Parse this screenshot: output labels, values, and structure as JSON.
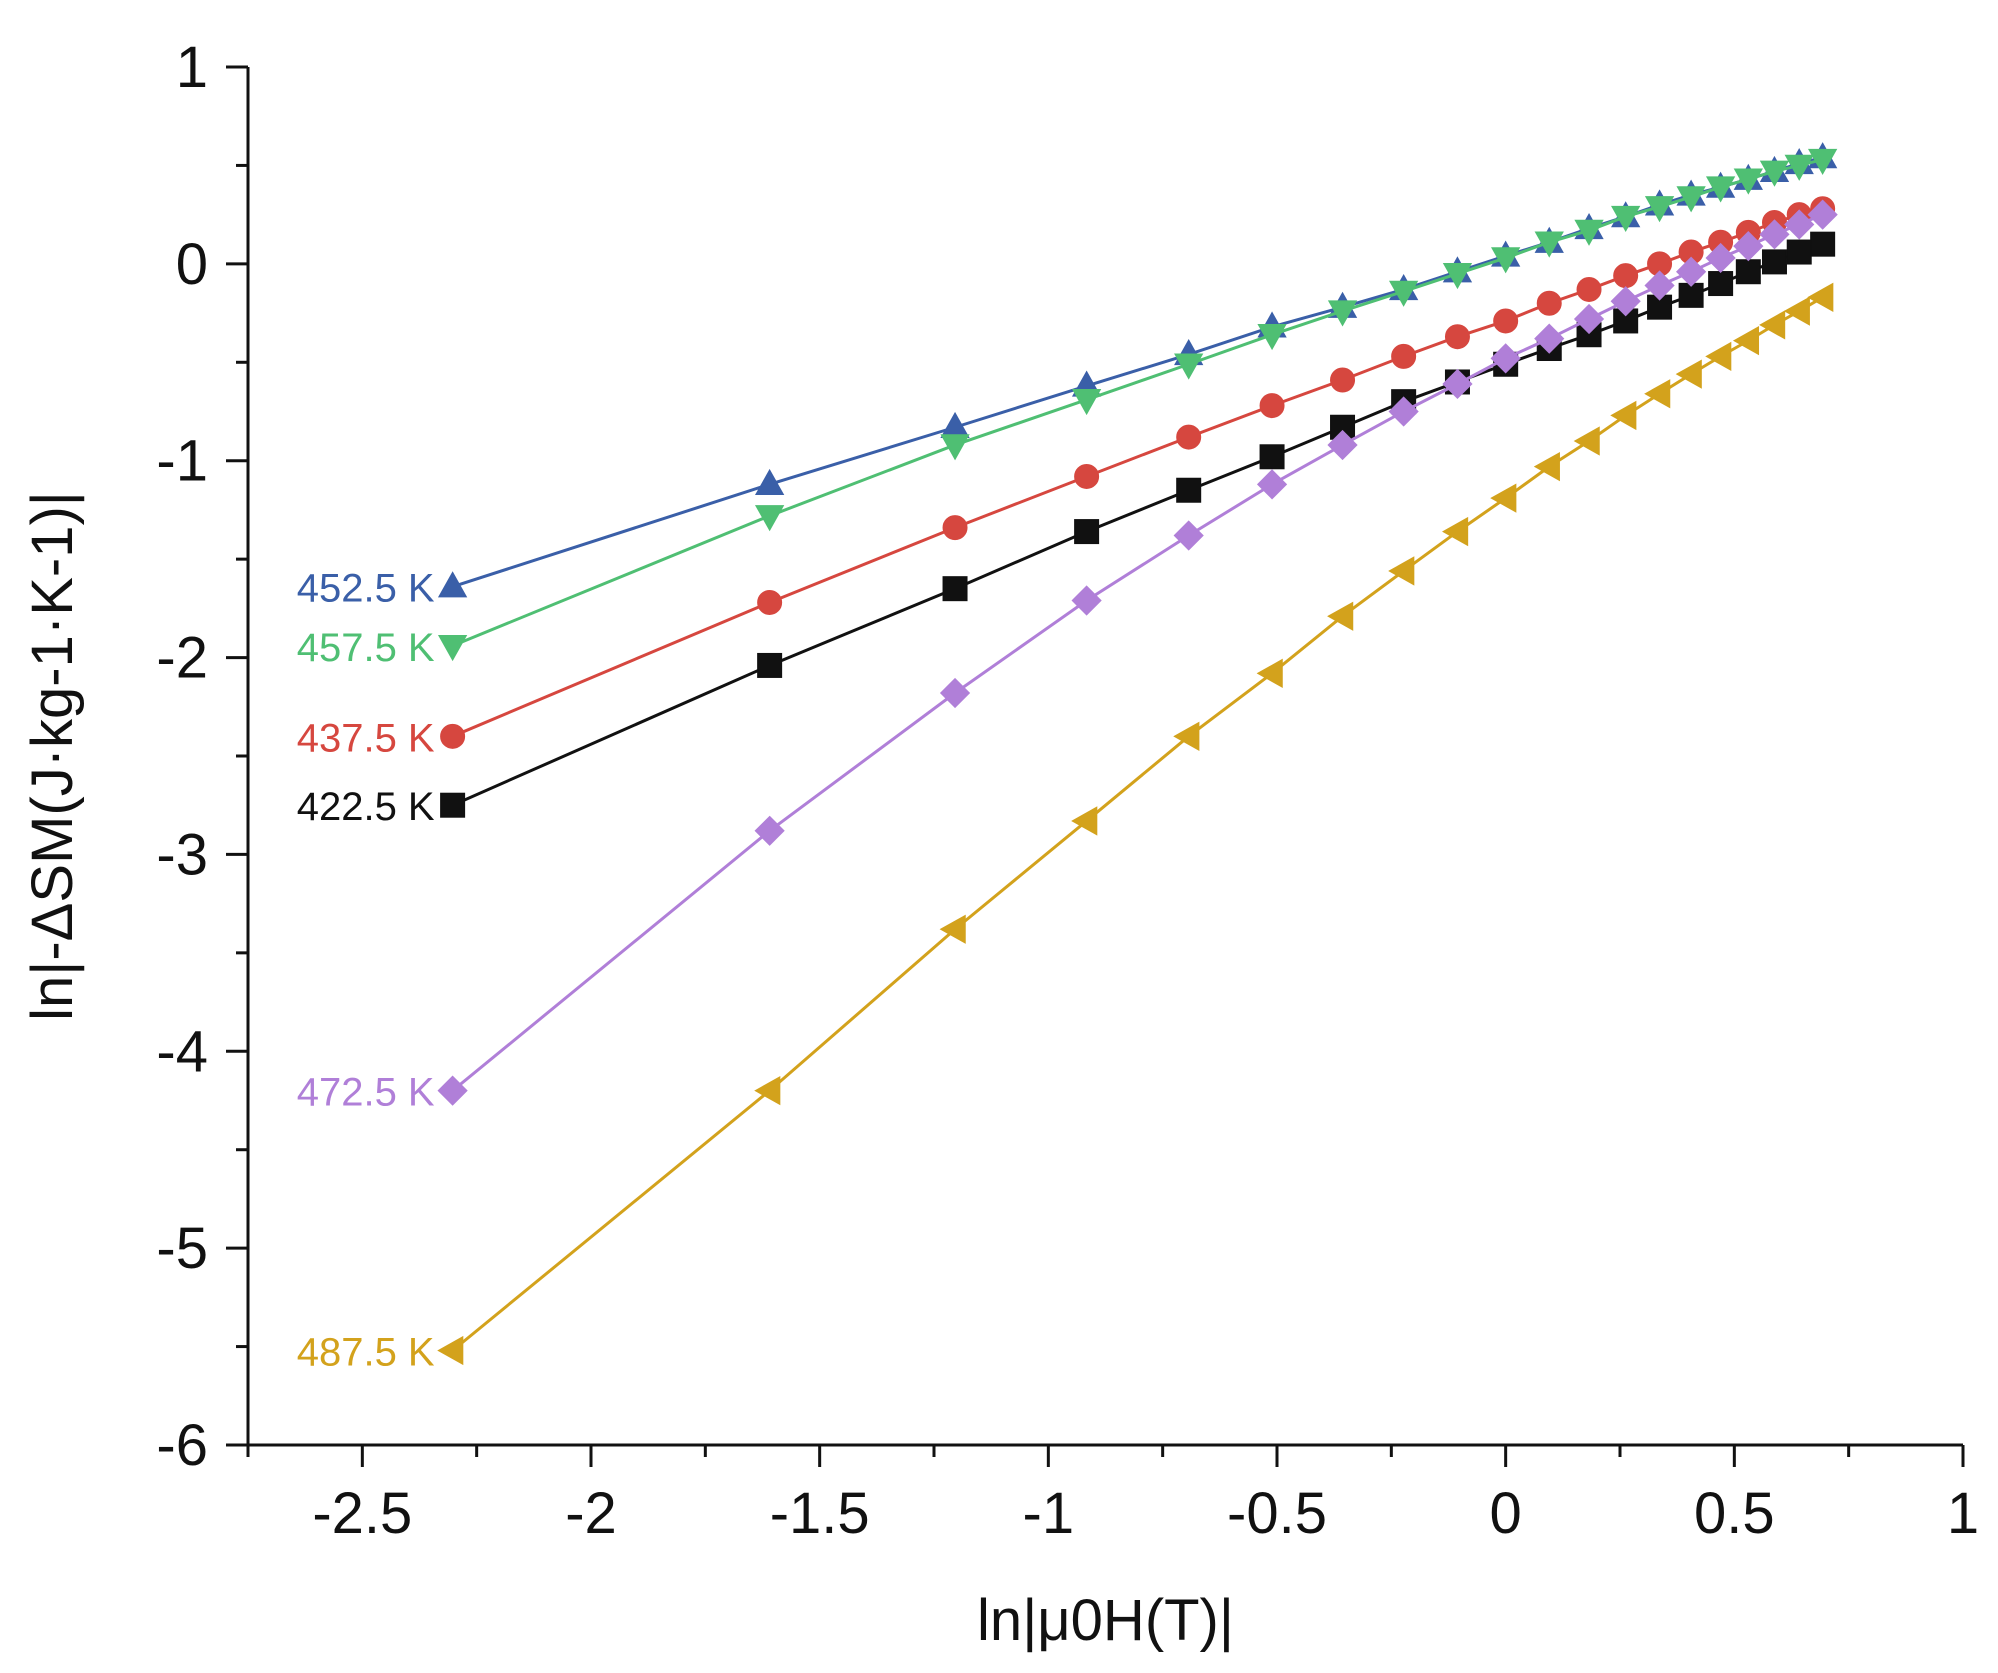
{
  "chart_data": {
    "type": "line",
    "title": "",
    "xlabel": "ln|μ0H(T)|",
    "ylabel": "ln|-ΔSM(J·kg-1·K-1)|",
    "xlim": [
      -2.75,
      1
    ],
    "ylim": [
      -6,
      1
    ],
    "xticks": [
      -2.5,
      -2,
      -1.5,
      -1,
      -0.5,
      0,
      0.5,
      1
    ],
    "xtick_labels": [
      "-2.5",
      "-2",
      "-1.5",
      "-1",
      "-0.5",
      "0",
      "0.5",
      "1"
    ],
    "yticks": [
      1,
      0,
      -1,
      -2,
      -3,
      -4,
      -5,
      -6
    ],
    "ytick_labels": [
      "1",
      "0",
      "-1",
      "-2",
      "-3",
      "-4",
      "-5",
      "-6"
    ],
    "grid": false,
    "x": [
      -2.3026,
      -1.6094,
      -1.204,
      -0.9163,
      -0.6931,
      -0.5108,
      -0.3567,
      -0.2231,
      -0.1054,
      0,
      0.0953,
      0.1823,
      0.2624,
      0.3365,
      0.4055,
      0.47,
      0.5306,
      0.5878,
      0.6419,
      0.6931
    ],
    "series": [
      {
        "name": "452.5 K",
        "color": "#3a5fa8",
        "marker": "triangle-up",
        "values": [
          -1.64,
          -1.12,
          -0.83,
          -0.62,
          -0.46,
          -0.32,
          -0.22,
          -0.13,
          -0.04,
          0.04,
          0.11,
          0.18,
          0.24,
          0.3,
          0.35,
          0.39,
          0.43,
          0.47,
          0.51,
          0.54
        ]
      },
      {
        "name": "457.5 K",
        "color": "#4fbf73",
        "marker": "triangle-down",
        "values": [
          -1.94,
          -1.28,
          -0.92,
          -0.69,
          -0.51,
          -0.36,
          -0.24,
          -0.14,
          -0.05,
          0.03,
          0.11,
          0.17,
          0.24,
          0.29,
          0.34,
          0.39,
          0.43,
          0.47,
          0.5,
          0.53
        ]
      },
      {
        "name": "437.5 K",
        "color": "#d6473f",
        "marker": "circle",
        "values": [
          -2.4,
          -1.72,
          -1.34,
          -1.08,
          -0.88,
          -0.72,
          -0.59,
          -0.47,
          -0.37,
          -0.29,
          -0.2,
          -0.13,
          -0.06,
          0.0,
          0.06,
          0.11,
          0.16,
          0.21,
          0.25,
          0.28
        ]
      },
      {
        "name": "422.5 K",
        "color": "#111111",
        "marker": "square",
        "values": [
          -2.75,
          -2.04,
          -1.65,
          -1.36,
          -1.15,
          -0.98,
          -0.83,
          -0.7,
          -0.6,
          -0.51,
          -0.43,
          -0.36,
          -0.29,
          -0.22,
          -0.16,
          -0.1,
          -0.04,
          0.01,
          0.06,
          0.1
        ]
      },
      {
        "name": "472.5 K",
        "color": "#b07fd8",
        "marker": "diamond",
        "values": [
          -4.2,
          -2.88,
          -2.18,
          -1.71,
          -1.38,
          -1.12,
          -0.92,
          -0.75,
          -0.61,
          -0.48,
          -0.38,
          -0.28,
          -0.19,
          -0.11,
          -0.04,
          0.03,
          0.09,
          0.15,
          0.2,
          0.25
        ]
      },
      {
        "name": "487.5 K",
        "color": "#d3a21c",
        "marker": "triangle-left",
        "values": [
          -5.52,
          -4.2,
          -3.38,
          -2.83,
          -2.4,
          -2.08,
          -1.79,
          -1.56,
          -1.36,
          -1.19,
          -1.03,
          -0.9,
          -0.77,
          -0.66,
          -0.56,
          -0.47,
          -0.39,
          -0.31,
          -0.24,
          -0.17
        ]
      }
    ]
  }
}
